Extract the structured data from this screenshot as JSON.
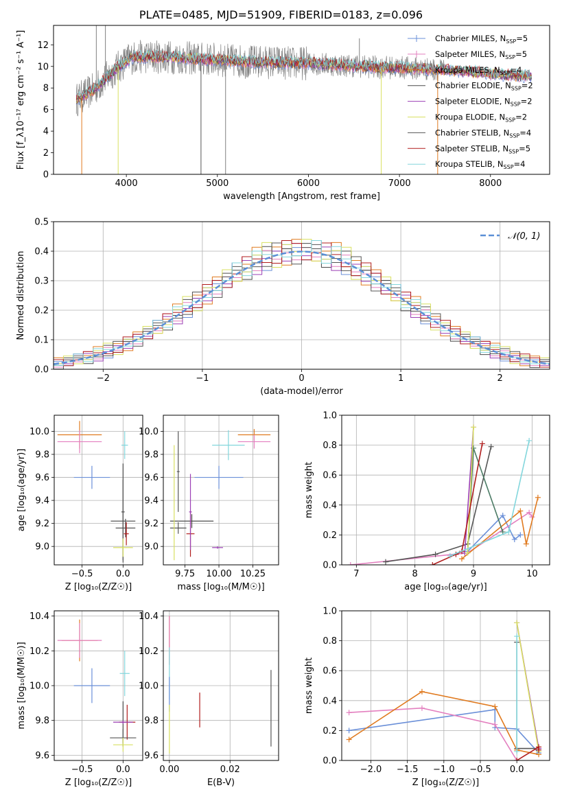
{
  "figure_title": "PLATE=0485, MJD=51909, FIBERID=0183, z=0.096",
  "colors": {
    "chabrier_miles": "#6a8fd8",
    "salpeter_miles": "#e37fbf",
    "kroupa_miles": "#e07a1f",
    "chabrier_elodie": "#4a4a4a",
    "salpeter_elodie": "#9b3fb5",
    "kroupa_elodie": "#d8e060",
    "chabrier_stelib": "#555555",
    "salpeter_stelib": "#b01c1c",
    "kroupa_stelib": "#82d6dc",
    "spectrum_data": "#808080",
    "normal_curve": "#5b8fd6"
  },
  "chart_data": [
    {
      "id": "spectrum",
      "type": "line",
      "xlabel": "wavelength [Angstrom, rest frame]",
      "ylabel": "Flux [f_λ10⁻¹⁷ erg cm⁻² s⁻¹ A⁻¹]",
      "xlim": [
        3200,
        8650
      ],
      "ylim": [
        0,
        13.8
      ],
      "xticks": [
        4000,
        5000,
        6000,
        7000,
        8000
      ],
      "yticks": [
        0,
        2,
        4,
        6,
        8,
        10,
        12
      ],
      "grid": false,
      "legend_position": "top-right",
      "legend": [
        {
          "label": "Chabrier MILES, N",
          "sub": "SSP",
          "tail": "=5",
          "color": "#6a8fd8"
        },
        {
          "label": "Salpeter MILES, N",
          "sub": "SSP",
          "tail": "=5",
          "color": "#e37fbf"
        },
        {
          "label": "Kroupa MILES, N",
          "sub": "SSP",
          "tail": "=4",
          "color": "#e07a1f"
        },
        {
          "label": "Chabrier ELODIE, N",
          "sub": "SSP",
          "tail": "=2",
          "color": "#4a4a4a"
        },
        {
          "label": "Salpeter ELODIE, N",
          "sub": "SSP",
          "tail": "=2",
          "color": "#9b3fb5"
        },
        {
          "label": "Kroupa ELODIE, N",
          "sub": "SSP",
          "tail": "=2",
          "color": "#d8e060"
        },
        {
          "label": "Chabrier STELIB, N",
          "sub": "SSP",
          "tail": "=4",
          "color": "#555555"
        },
        {
          "label": "Salpeter STELIB, N",
          "sub": "SSP",
          "tail": "=5",
          "color": "#b01c1c"
        },
        {
          "label": "Kroupa STELIB, N",
          "sub": "SSP",
          "tail": "=4",
          "color": "#82d6dc"
        }
      ],
      "continuum": {
        "x": [
          3450,
          3550,
          3650,
          3750,
          3850,
          3950,
          4050,
          4200,
          4400,
          4600,
          4800,
          5000,
          5200,
          5400,
          5600,
          5800,
          6000,
          6200,
          6400,
          6600,
          6800,
          7000,
          7200,
          7400,
          7600,
          7800,
          8000,
          8200,
          8400
        ],
        "y": [
          6.9,
          7.4,
          7.9,
          8.7,
          9.5,
          10.2,
          10.8,
          10.9,
          10.9,
          10.8,
          10.7,
          10.6,
          10.5,
          10.4,
          10.4,
          10.3,
          10.3,
          10.2,
          10.1,
          10.0,
          9.9,
          9.9,
          9.8,
          9.7,
          9.6,
          9.5,
          9.3,
          9.2,
          9.1
        ]
      },
      "spikes": [
        {
          "x": 3510,
          "y": 0.0,
          "color": "#e07a1f"
        },
        {
          "x": 3910,
          "y": 0.0,
          "color": "#d8e060"
        },
        {
          "x": 4820,
          "y": 0.0,
          "color": "#555555"
        },
        {
          "x": 5090,
          "y": 0.0,
          "color": "#808080"
        },
        {
          "x": 6800,
          "y": 0.0,
          "color": "#d8e060"
        },
        {
          "x": 7420,
          "y": 0.0,
          "color": "#e07a1f"
        },
        {
          "x": 6560,
          "y": 12.6,
          "color": "#808080"
        },
        {
          "x": 3670,
          "y": 13.8,
          "color": "#808080"
        },
        {
          "x": 3770,
          "y": 13.8,
          "color": "#808080"
        }
      ]
    },
    {
      "id": "residual_histogram",
      "type": "step-histogram",
      "xlabel": "(data-model)/error",
      "ylabel": "Normed distribution",
      "xlim": [
        -2.5,
        2.5
      ],
      "ylim": [
        0,
        0.5
      ],
      "xticks": [
        -2,
        -1,
        0,
        1,
        2
      ],
      "yticks": [
        0.0,
        0.1,
        0.2,
        0.3,
        0.4,
        0.5
      ],
      "grid": true,
      "legend_position": "top-right",
      "legend_label": "𝒩(0, 1)",
      "bin_width": 0.1,
      "bin_start": -2.5,
      "reference_curve": "normal(0,1)",
      "series_deviations": [
        [
          0.01,
          -0.02,
          0.03,
          -0.01,
          0.02,
          -0.03,
          0.01,
          0.02
        ],
        [
          -0.02,
          0.01,
          -0.01,
          0.03,
          -0.02,
          0.02,
          -0.01,
          0.0
        ],
        [
          0.03,
          0.0,
          -0.02,
          0.01,
          0.04,
          -0.01,
          0.02,
          -0.03
        ],
        [
          -0.01,
          0.02,
          0.01,
          -0.03,
          0.0,
          0.03,
          -0.02,
          0.01
        ],
        [
          0.02,
          -0.01,
          0.03,
          0.02,
          -0.03,
          0.0,
          0.01,
          -0.02
        ],
        [
          0.0,
          0.03,
          -0.02,
          -0.01,
          0.02,
          0.04,
          -0.03,
          0.02
        ],
        [
          -0.03,
          0.01,
          0.02,
          0.0,
          -0.01,
          -0.02,
          0.03,
          0.01
        ],
        [
          0.02,
          -0.02,
          0.0,
          0.03,
          0.01,
          -0.01,
          -0.02,
          0.03
        ],
        [
          -0.01,
          0.0,
          0.03,
          -0.02,
          0.03,
          0.01,
          0.0,
          -0.01
        ]
      ]
    },
    {
      "id": "age_vs_Z",
      "type": "errorbar",
      "xlabel": "Z [log₁₀(Z/Z☉)]",
      "ylabel": "age  [log₁₀(age/yr)]",
      "xlim": [
        -0.84,
        0.24
      ],
      "ylim": [
        8.84,
        10.14
      ],
      "xticks": [
        -0.5,
        0.0
      ],
      "yticks": [
        9.0,
        9.2,
        9.4,
        9.6,
        9.8,
        10.0
      ],
      "grid": true,
      "points": [
        {
          "x": -0.53,
          "y": 9.97,
          "xerr": 0.27,
          "yerr": 0.12,
          "color": "#e07a1f"
        },
        {
          "x": -0.53,
          "y": 9.91,
          "xerr": 0.27,
          "yerr": 0.1,
          "color": "#e37fbf"
        },
        {
          "x": -0.38,
          "y": 9.6,
          "xerr": 0.22,
          "yerr": 0.1,
          "color": "#6a8fd8"
        },
        {
          "x": 0.02,
          "y": 9.88,
          "xerr": 0.04,
          "yerr": 0.12,
          "color": "#82d6dc"
        },
        {
          "x": 0.0,
          "y": 9.3,
          "xerr": 0.02,
          "yerr": 0.42,
          "color": "#4a4a4a"
        },
        {
          "x": 0.0,
          "y": 9.22,
          "xerr": 0.15,
          "yerr": 0.36,
          "color": "#555555"
        },
        {
          "x": 0.03,
          "y": 9.16,
          "xerr": 0.12,
          "yerr": 0.08,
          "color": "#555555"
        },
        {
          "x": 0.04,
          "y": 9.11,
          "xerr": 0.03,
          "yerr": 0.1,
          "color": "#b01c1c"
        },
        {
          "x": 0.0,
          "y": 8.99,
          "xerr": 0.12,
          "yerr": 0.08,
          "color": "#d8e060"
        }
      ]
    },
    {
      "id": "age_vs_mass",
      "type": "errorbar",
      "xlabel": "mass [log₁₀(M/M☉)]",
      "ylabel": "",
      "xlim": [
        9.59,
        10.44
      ],
      "ylim": [
        8.84,
        10.14
      ],
      "xticks": [
        9.75,
        10.0,
        10.25
      ],
      "xticklabels": [
        "9.75",
        "10.00",
        "10.25"
      ],
      "yticks": [
        9.0,
        9.2,
        9.4,
        9.6,
        9.8,
        10.0
      ],
      "grid": true,
      "points": [
        {
          "x": 10.26,
          "y": 9.97,
          "xerr": 0.12,
          "yerr": 0.05,
          "color": "#e07a1f"
        },
        {
          "x": 10.26,
          "y": 9.91,
          "xerr": 0.12,
          "yerr": 0.06,
          "color": "#e37fbf"
        },
        {
          "x": 10.07,
          "y": 9.88,
          "xerr": 0.12,
          "yerr": 0.13,
          "color": "#82d6dc"
        },
        {
          "x": 10.0,
          "y": 9.6,
          "xerr": 0.18,
          "yerr": 0.1,
          "color": "#6a8fd8"
        },
        {
          "x": 9.7,
          "y": 9.65,
          "xerr": 0.01,
          "yerr": 0.35,
          "color": "#555555"
        },
        {
          "x": 9.8,
          "y": 9.22,
          "xerr": 0.16,
          "yerr": 0.06,
          "color": "#4a4a4a"
        },
        {
          "x": 9.79,
          "y": 9.11,
          "xerr": 0.03,
          "yerr": 0.2,
          "color": "#b01c1c"
        },
        {
          "x": 9.7,
          "y": 9.16,
          "xerr": 0.06,
          "yerr": 0.05,
          "color": "#555555"
        },
        {
          "x": 9.79,
          "y": 9.3,
          "xerr": 0.01,
          "yerr": 0.33,
          "color": "#9b3fb5"
        },
        {
          "x": 9.99,
          "y": 8.99,
          "xerr": 0.04,
          "yerr": 0.01,
          "color": "#9b3fb5"
        },
        {
          "x": 9.67,
          "y": 9.38,
          "xerr": 0.0,
          "yerr": 0.5,
          "color": "#d8e060"
        }
      ]
    },
    {
      "id": "weight_vs_age",
      "type": "line",
      "xlabel": "age  [log₁₀(age/yr)]",
      "ylabel": "mass weight",
      "xlim": [
        6.75,
        10.3
      ],
      "ylim": [
        0,
        1
      ],
      "xticks": [
        7,
        8,
        9,
        10
      ],
      "yticks": [
        0.0,
        0.2,
        0.4,
        0.6,
        0.8,
        1.0
      ],
      "grid": true,
      "series": [
        {
          "color": "#6a8fd8",
          "x": [
            8.9,
            9.5,
            9.7,
            9.8
          ],
          "y": [
            0.09,
            0.33,
            0.17,
            0.2
          ]
        },
        {
          "color": "#e37fbf",
          "x": [
            6.9,
            8.9,
            9.95,
            10.0
          ],
          "y": [
            0.0,
            0.08,
            0.35,
            0.32
          ]
        },
        {
          "color": "#e07a1f",
          "x": [
            8.8,
            9.8,
            9.9,
            10.1
          ],
          "y": [
            0.04,
            0.36,
            0.14,
            0.45
          ]
        },
        {
          "color": "#555555",
          "x": [
            7.5,
            8.35,
            8.9,
            9.3
          ],
          "y": [
            0.02,
            0.07,
            0.14,
            0.79
          ]
        },
        {
          "color": "#4a7a64",
          "x": [
            8.9,
            9.0,
            9.5
          ],
          "y": [
            0.08,
            0.78,
            0.22
          ]
        },
        {
          "color": "#9b3fb5",
          "x": [
            8.85,
            9.0
          ],
          "y": [
            0.08,
            0.92
          ]
        },
        {
          "color": "#d8e060",
          "x": [
            8.9,
            9.0
          ],
          "y": [
            0.08,
            0.92
          ]
        },
        {
          "color": "#b01c1c",
          "x": [
            8.3,
            8.7,
            8.8,
            9.15
          ],
          "y": [
            0.0,
            0.07,
            0.09,
            0.81
          ]
        },
        {
          "color": "#82d6dc",
          "x": [
            8.6,
            9.6,
            9.95
          ],
          "y": [
            0.06,
            0.22,
            0.83
          ]
        }
      ]
    },
    {
      "id": "mass_vs_Z",
      "type": "errorbar",
      "xlabel": "Z [log₁₀(Z/Z☉)]",
      "ylabel": "mass [log₁₀(M/M☉)]",
      "xlim": [
        -0.84,
        0.24
      ],
      "ylim": [
        9.57,
        10.43
      ],
      "xticks": [
        -0.5,
        0.0
      ],
      "yticks": [
        9.6,
        9.8,
        10.0,
        10.2,
        10.4
      ],
      "grid": true,
      "points": [
        {
          "x": -0.53,
          "y": 10.26,
          "xerr": 0.22,
          "yerr": 0.12,
          "color": "#e07a1f"
        },
        {
          "x": -0.53,
          "y": 10.26,
          "xerr": 0.27,
          "yerr": 0.1,
          "color": "#e37fbf"
        },
        {
          "x": -0.38,
          "y": 10.0,
          "xerr": 0.22,
          "yerr": 0.1,
          "color": "#6a8fd8"
        },
        {
          "x": 0.02,
          "y": 10.07,
          "xerr": 0.06,
          "yerr": 0.13,
          "color": "#82d6dc"
        },
        {
          "x": 0.0,
          "y": 9.79,
          "xerr": 0.03,
          "yerr": 0.12,
          "color": "#4a4a4a"
        },
        {
          "x": 0.05,
          "y": 9.79,
          "xerr": 0.1,
          "yerr": 0.1,
          "color": "#b01c1c"
        },
        {
          "x": 0.0,
          "y": 9.79,
          "xerr": 0.12,
          "yerr": 0.01,
          "color": "#9b3fb5"
        },
        {
          "x": 0.0,
          "y": 9.7,
          "xerr": 0.16,
          "yerr": 0.05,
          "color": "#555555"
        },
        {
          "x": 0.0,
          "y": 9.66,
          "xerr": 0.12,
          "yerr": 0.04,
          "color": "#d8e060"
        }
      ]
    },
    {
      "id": "mass_vs_ebv",
      "type": "errorbar",
      "xlabel": "E(B-V)",
      "ylabel": "",
      "xlim": [
        -0.002,
        0.036
      ],
      "ylim": [
        9.57,
        10.43
      ],
      "xticks": [
        0.0,
        0.02
      ],
      "xticklabels": [
        "0.00",
        "0.02"
      ],
      "yticks": [
        9.6,
        9.8,
        10.0,
        10.2,
        10.4
      ],
      "grid": true,
      "points": [
        {
          "x": 0.0,
          "y": 10.26,
          "xerr": 0.0,
          "yerr": 0.14,
          "color": "#e07a1f"
        },
        {
          "x": 0.0,
          "y": 10.26,
          "xerr": 0.0,
          "yerr": 0.14,
          "color": "#e37fbf"
        },
        {
          "x": 0.0,
          "y": 10.07,
          "xerr": 0.0,
          "yerr": 0.15,
          "color": "#82d6dc"
        },
        {
          "x": 0.0,
          "y": 9.95,
          "xerr": 0.0,
          "yerr": 0.1,
          "color": "#6a8fd8"
        },
        {
          "x": 0.0,
          "y": 9.75,
          "xerr": 0.0,
          "yerr": 0.14,
          "color": "#d8e060"
        },
        {
          "x": 0.01,
          "y": 9.86,
          "xerr": 0.0,
          "yerr": 0.1,
          "color": "#b01c1c"
        },
        {
          "x": 0.0335,
          "y": 9.87,
          "xerr": 0.0,
          "yerr": 0.22,
          "color": "#555555"
        }
      ]
    },
    {
      "id": "weight_vs_Z",
      "type": "line",
      "xlabel": "Z [log₁₀(Z/Z☉)]",
      "ylabel": "mass weight",
      "xlim": [
        -2.4,
        0.45
      ],
      "ylim": [
        0,
        1
      ],
      "xticks": [
        -2.0,
        -1.5,
        -1.0,
        -0.5,
        0.0
      ],
      "yticks": [
        0.0,
        0.2,
        0.4,
        0.6,
        0.8,
        1.0
      ],
      "grid": true,
      "series": [
        {
          "color": "#6a8fd8",
          "x": [
            -2.3,
            -0.3,
            -0.3,
            0.0,
            0.3
          ],
          "y": [
            0.2,
            0.34,
            0.22,
            0.21,
            0.05
          ]
        },
        {
          "color": "#e37fbf",
          "x": [
            -2.3,
            -1.3,
            -0.3,
            0.0
          ],
          "y": [
            0.32,
            0.35,
            0.24,
            0.0
          ]
        },
        {
          "color": "#e07a1f",
          "x": [
            -2.3,
            -1.3,
            -0.3,
            0.0,
            0.3
          ],
          "y": [
            0.14,
            0.46,
            0.36,
            0.07,
            0.04
          ]
        },
        {
          "color": "#555555",
          "x": [
            0.0,
            0.0,
            0.3
          ],
          "y": [
            0.79,
            0.08,
            0.08
          ]
        },
        {
          "color": "#9b3fb5",
          "x": [
            0.0,
            0.3
          ],
          "y": [
            0.92,
            0.08
          ]
        },
        {
          "color": "#d8e060",
          "x": [
            0.0,
            0.3
          ],
          "y": [
            0.92,
            0.06
          ]
        },
        {
          "color": "#b01c1c",
          "x": [
            0.0,
            0.3,
            0.3
          ],
          "y": [
            0.0,
            0.09,
            0.07
          ]
        },
        {
          "color": "#82d6dc",
          "x": [
            0.0,
            0.0
          ],
          "y": [
            0.83,
            0.06
          ]
        }
      ]
    }
  ]
}
